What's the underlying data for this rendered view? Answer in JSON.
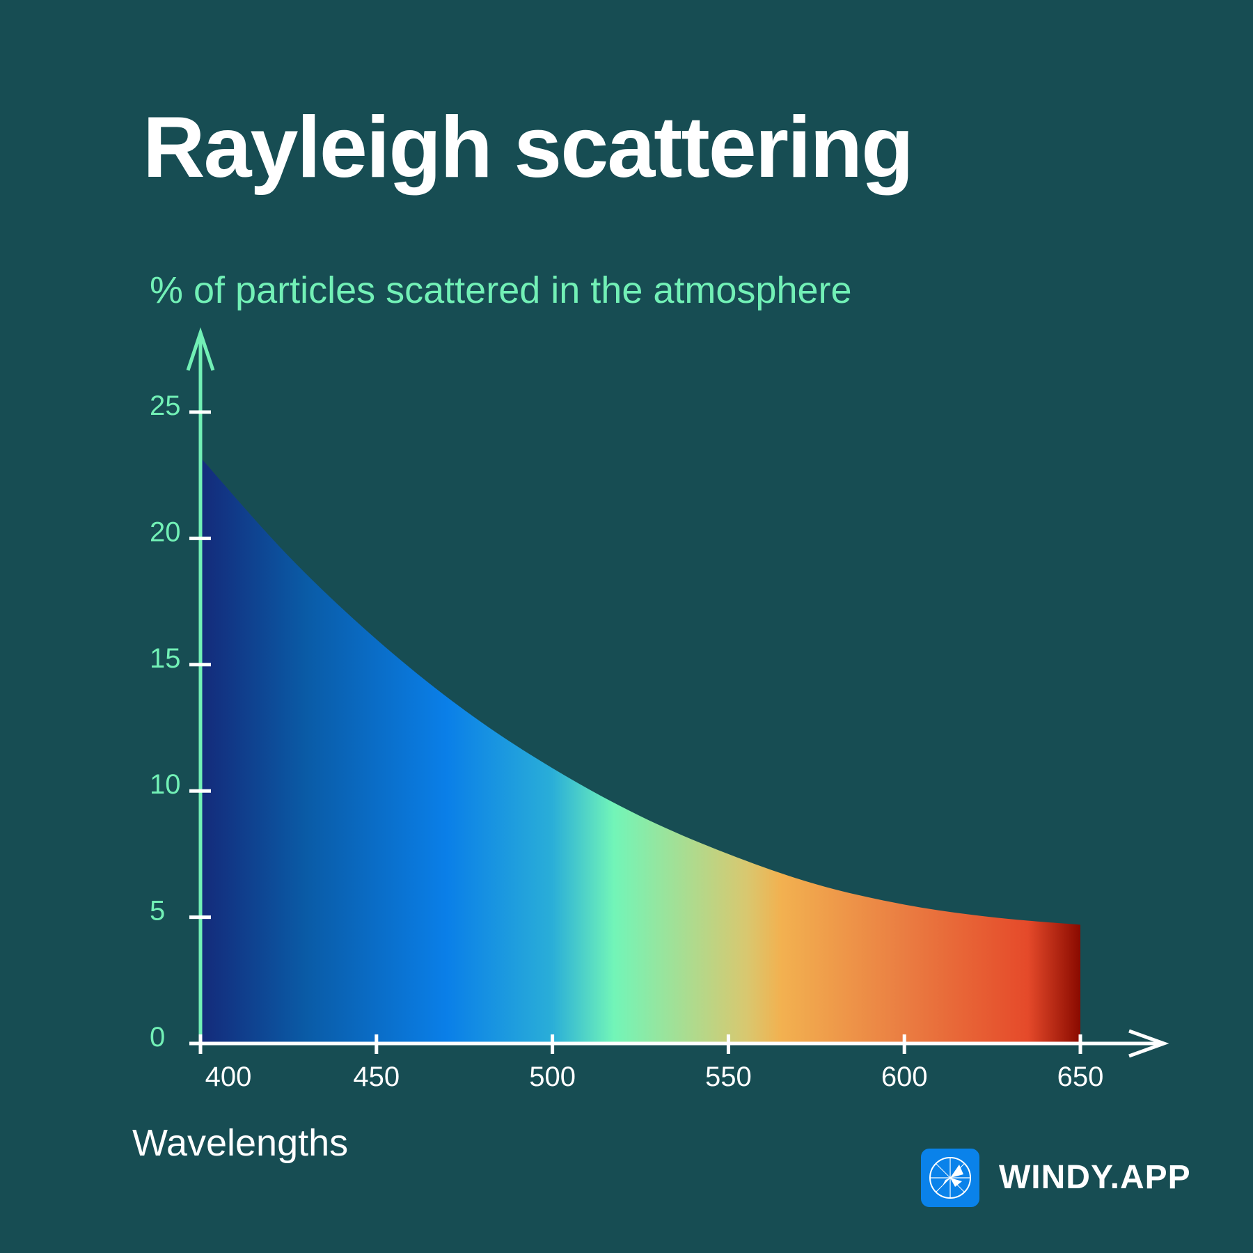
{
  "title": "Rayleigh scattering",
  "chart_data": {
    "type": "area",
    "title": "Rayleigh scattering",
    "ylabel": "% of particles scattered in the atmosphere",
    "xlabel": "Wavelengths",
    "x": [
      400,
      425,
      450,
      475,
      500,
      525,
      550,
      575,
      600,
      625,
      650
    ],
    "y": [
      23.2,
      19.3,
      16.0,
      13.2,
      10.9,
      9.0,
      7.5,
      6.3,
      5.5,
      5.0,
      4.7
    ],
    "xlim": [
      400,
      650
    ],
    "ylim": [
      0,
      25
    ],
    "xticks": [
      400,
      450,
      500,
      550,
      600,
      650
    ],
    "yticks": [
      0,
      5,
      10,
      15,
      20,
      25
    ],
    "grid": false,
    "legend": "none"
  },
  "colors": {
    "background": "#174d53",
    "axis_y": "#72f0b6",
    "axis_x": "#ffffff",
    "spectrum": [
      "#142a7a",
      "#0a5ba6",
      "#0a7fe8",
      "#2aaed8",
      "#72f5b8",
      "#d8c870",
      "#f2b150",
      "#ea7d42",
      "#e54a2a",
      "#8a0a00"
    ]
  },
  "brand": {
    "name": "WINDY.APP",
    "icon": "windy-logo-icon"
  }
}
